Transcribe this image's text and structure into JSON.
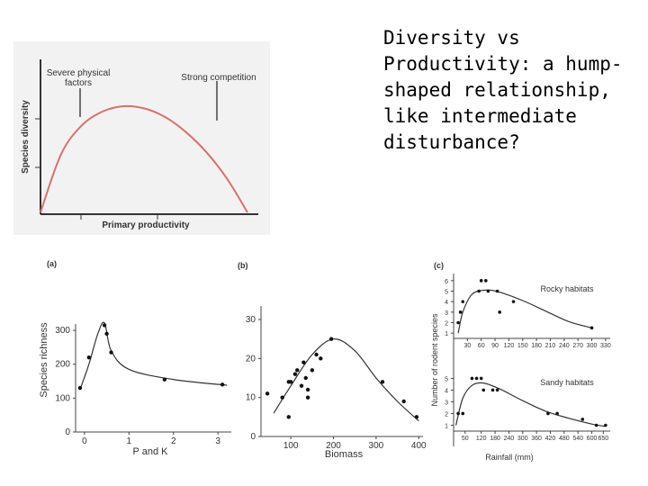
{
  "slide": {
    "title": "Diversity vs Productivity: a hump-shaped relationship, like intermediate disturbance?"
  },
  "chart_data": [
    {
      "type": "line",
      "xlabel": "Primary productivity",
      "ylabel": "Species diversity",
      "annotations": [
        "Severe physical factors",
        "Strong competition"
      ],
      "x": [
        0,
        0.1,
        0.2,
        0.3,
        0.4,
        0.5,
        0.6,
        0.7,
        0.8,
        0.9,
        1.0
      ],
      "y": [
        0.0,
        0.55,
        0.82,
        0.95,
        1.0,
        0.98,
        0.9,
        0.76,
        0.57,
        0.32,
        0.0
      ],
      "line_color": "#d9706a"
    },
    {
      "type": "scatter",
      "panel_label": "(a)",
      "xlabel": "P and K",
      "ylabel": "Species richness",
      "x_ticks": [
        "0",
        "1",
        "2",
        "3"
      ],
      "y_ticks": [
        "0",
        "100",
        "200",
        "300"
      ],
      "xlim": [
        -0.2,
        3.3
      ],
      "ylim": [
        0,
        340
      ],
      "points": [
        [
          -0.1,
          130
        ],
        [
          0.1,
          220
        ],
        [
          0.45,
          315
        ],
        [
          0.5,
          290
        ],
        [
          0.6,
          235
        ],
        [
          1.8,
          155
        ],
        [
          3.1,
          140
        ]
      ],
      "curve": [
        [
          -0.1,
          125
        ],
        [
          0.1,
          200
        ],
        [
          0.3,
          290
        ],
        [
          0.45,
          322
        ],
        [
          0.6,
          240
        ],
        [
          1.0,
          185
        ],
        [
          2.0,
          155
        ],
        [
          3.2,
          138
        ]
      ]
    },
    {
      "type": "scatter",
      "panel_label": "(b)",
      "xlabel": "Biomass",
      "ylabel": "",
      "x_ticks": [
        "100",
        "200",
        "300",
        "400"
      ],
      "y_ticks": [
        "0",
        "10",
        "20",
        "30"
      ],
      "xlim": [
        30,
        410
      ],
      "ylim": [
        0,
        33
      ],
      "points": [
        [
          45,
          11
        ],
        [
          80,
          10
        ],
        [
          95,
          5
        ],
        [
          95,
          14
        ],
        [
          100,
          14
        ],
        [
          110,
          16
        ],
        [
          115,
          17
        ],
        [
          125,
          13
        ],
        [
          130,
          19
        ],
        [
          135,
          15
        ],
        [
          140,
          12
        ],
        [
          140,
          10
        ],
        [
          150,
          17
        ],
        [
          160,
          21
        ],
        [
          170,
          20
        ],
        [
          195,
          25
        ],
        [
          315,
          14
        ],
        [
          365,
          9
        ],
        [
          395,
          5
        ]
      ],
      "curve": [
        [
          60,
          6
        ],
        [
          100,
          13
        ],
        [
          150,
          21
        ],
        [
          200,
          25
        ],
        [
          250,
          22
        ],
        [
          300,
          15
        ],
        [
          350,
          9
        ],
        [
          400,
          4
        ]
      ]
    },
    {
      "type": "scatter",
      "panel_label": "(c)",
      "xlabel": "Rainfall (mm)",
      "ylabel": "Number of rodent species",
      "series": [
        {
          "name": "Rocky habitats",
          "x_ticks": [
            "30",
            "60",
            "90",
            "120",
            "150",
            "180",
            "210",
            "240",
            "270",
            "300",
            "330"
          ],
          "y_ticks": [
            "1",
            "2",
            "3",
            "4",
            "5",
            "6"
          ],
          "xlim": [
            0,
            340
          ],
          "ylim": [
            0.5,
            6.5
          ],
          "points": [
            [
              10,
              2
            ],
            [
              15,
              3
            ],
            [
              20,
              4
            ],
            [
              55,
              5
            ],
            [
              60,
              6
            ],
            [
              70,
              6
            ],
            [
              75,
              5
            ],
            [
              95,
              5
            ],
            [
              100,
              3
            ],
            [
              130,
              4
            ],
            [
              300,
              1.5
            ]
          ],
          "curve": [
            [
              10,
              1
            ],
            [
              20,
              3
            ],
            [
              40,
              4.7
            ],
            [
              70,
              5.1
            ],
            [
              100,
              4.9
            ],
            [
              150,
              4.1
            ],
            [
              200,
              3.1
            ],
            [
              250,
              2.1
            ],
            [
              300,
              1.5
            ]
          ]
        },
        {
          "name": "Sandy habitats",
          "x_ticks": [
            "50",
            "120",
            "180",
            "240",
            "300",
            "360",
            "420",
            "480",
            "540",
            "600",
            "650"
          ],
          "y_ticks": [
            "1",
            "2",
            "3",
            "4",
            "5"
          ],
          "xlim": [
            0,
            680
          ],
          "ylim": [
            0.5,
            5.8
          ],
          "points": [
            [
              20,
              2
            ],
            [
              40,
              2
            ],
            [
              80,
              5
            ],
            [
              100,
              5
            ],
            [
              120,
              5
            ],
            [
              130,
              4
            ],
            [
              170,
              4
            ],
            [
              190,
              4
            ],
            [
              410,
              2
            ],
            [
              450,
              2
            ],
            [
              560,
              1.5
            ],
            [
              620,
              1
            ],
            [
              660,
              1
            ]
          ],
          "curve": [
            [
              10,
              1
            ],
            [
              40,
              3.3
            ],
            [
              80,
              4.4
            ],
            [
              130,
              4.6
            ],
            [
              200,
              4.1
            ],
            [
              300,
              3.1
            ],
            [
              400,
              2.2
            ],
            [
              500,
              1.6
            ],
            [
              600,
              1.1
            ],
            [
              660,
              0.9
            ]
          ]
        }
      ]
    }
  ]
}
